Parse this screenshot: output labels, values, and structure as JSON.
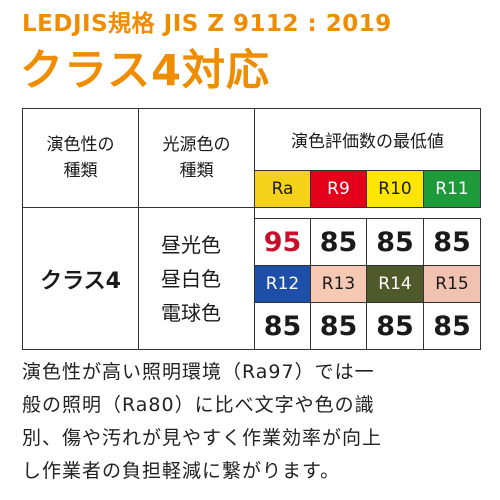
{
  "header": {
    "subtitle": "LEDJIS規格 JIS Z 9112 : 2019",
    "title": "クラス4対応"
  },
  "table": {
    "col_rendering_type": [
      "演色性の",
      "種類"
    ],
    "col_light_source": [
      "光源色の",
      "種類"
    ],
    "col_min_values": "演色評価数の最低値",
    "class_name": "クラス4",
    "light_sources": [
      "昼光色",
      "昼白色",
      "電球色"
    ],
    "row1": [
      {
        "index": "Ra",
        "value": "95",
        "bg": "#f5d21a",
        "fg": "#1a1a1a",
        "value_color": "#c8102e"
      },
      {
        "index": "R9",
        "value": "85",
        "bg": "#e4001b",
        "fg": "#ffffff",
        "value_color": "#1a1a1a"
      },
      {
        "index": "R10",
        "value": "85",
        "bg": "#ffe600",
        "fg": "#1a1a1a",
        "value_color": "#1a1a1a"
      },
      {
        "index": "R11",
        "value": "85",
        "bg": "#1f9a3a",
        "fg": "#ffffff",
        "value_color": "#1a1a1a"
      }
    ],
    "row2": [
      {
        "index": "R12",
        "value": "85",
        "bg": "#1d4fa8",
        "fg": "#ffffff",
        "value_color": "#1a1a1a"
      },
      {
        "index": "R13",
        "value": "85",
        "bg": "#f5c9b4",
        "fg": "#1a1a1a",
        "value_color": "#1a1a1a"
      },
      {
        "index": "R14",
        "value": "85",
        "bg": "#4f5a2a",
        "fg": "#ffffff",
        "value_color": "#1a1a1a"
      },
      {
        "index": "R15",
        "value": "85",
        "bg": "#f2c2b0",
        "fg": "#1a1a1a",
        "value_color": "#1a1a1a"
      }
    ]
  },
  "paragraph": [
    "演色性が高い照明環境（Ra97）では一",
    "般の照明（Ra80）に比べ文字や色の識",
    "別、傷や汚れが見やすく作業効率が向上",
    "し作業者の負担軽減に繋がります。"
  ]
}
